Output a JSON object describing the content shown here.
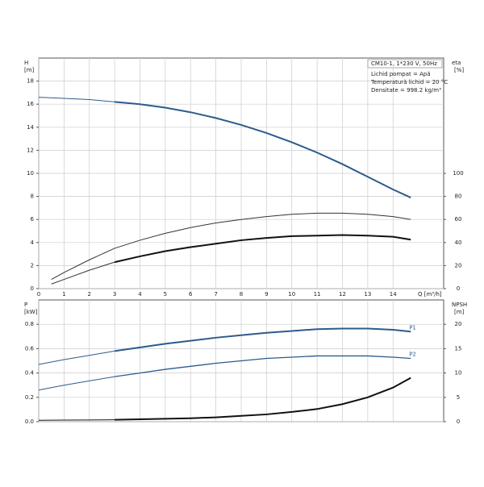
{
  "chart_data": [
    {
      "type": "line",
      "y_label": "H",
      "y_unit": "[m]",
      "y2_label": "eta",
      "y2_unit": "[%]",
      "x_label": "Q [m³/h]",
      "info": [
        "CM10-1, 1*230 V, 50Hz",
        "Lichid pompat = Apă",
        "Temperatură lichid = 20 °C",
        "Densitate = 998.2 kg/m³"
      ],
      "xlim": [
        0,
        16
      ],
      "xticks": [
        0,
        1,
        2,
        3,
        4,
        5,
        6,
        7,
        8,
        9,
        10,
        11,
        12,
        13,
        14
      ],
      "ylim": [
        0,
        20
      ],
      "yticks": [
        0,
        2,
        4,
        6,
        8,
        10,
        12,
        14,
        16,
        18
      ],
      "y2lim": [
        0,
        200
      ],
      "y2ticks": [
        0,
        20,
        40,
        60,
        80,
        100
      ],
      "grid": true,
      "series": [
        {
          "color": "#2c5b8c",
          "width": 1,
          "x": [
            0,
            1,
            2,
            3
          ],
          "values": [
            16.6,
            16.5,
            16.4,
            16.2
          ]
        },
        {
          "color": "#2c5b8c",
          "width": 2,
          "x": [
            3,
            4,
            5,
            6,
            7,
            8,
            9,
            10,
            11,
            12,
            13,
            14,
            14.7
          ],
          "values": [
            16.2,
            16.0,
            15.7,
            15.3,
            14.8,
            14.2,
            13.5,
            12.7,
            11.8,
            10.8,
            9.7,
            8.6,
            7.9
          ]
        },
        {
          "color": "#333333",
          "width": 1,
          "axis": "y2",
          "x": [
            0.5,
            1,
            2,
            3,
            4,
            5,
            6,
            7,
            8,
            9,
            10,
            11,
            12,
            13,
            14,
            14.7
          ],
          "values": [
            8,
            14,
            25,
            35,
            42,
            48,
            53,
            57,
            60,
            62.5,
            64.5,
            65.5,
            65.5,
            64.5,
            62.5,
            60
          ]
        },
        {
          "color": "#333333",
          "width": 1,
          "axis": "y2",
          "x": [
            0.5,
            1,
            2,
            3
          ],
          "values": [
            4,
            8,
            16,
            23
          ]
        },
        {
          "color": "#111111",
          "width": 2,
          "axis": "y2",
          "x": [
            3,
            4,
            5,
            6,
            7,
            8,
            9,
            10,
            11,
            12,
            13,
            14,
            14.7
          ],
          "values": [
            23,
            28,
            32.5,
            36,
            39,
            42,
            44,
            45.5,
            46,
            46.5,
            46,
            45,
            42.5
          ]
        }
      ]
    },
    {
      "type": "line",
      "y_label": "P",
      "y_unit": "[kW]",
      "y2_label": "NPSH",
      "y2_unit": "[m]",
      "xlim": [
        0,
        16
      ],
      "ylim": [
        0,
        1
      ],
      "yticks": [
        {
          "value": 0,
          "label": "0.0"
        },
        0.2,
        0.4,
        0.6,
        0.8
      ],
      "y2lim": [
        0,
        25
      ],
      "y2ticks": [
        0,
        5,
        10,
        15,
        20
      ],
      "grid": true,
      "series": [
        {
          "color": "#2c5b8c",
          "width": 1,
          "x": [
            0,
            1,
            2,
            3
          ],
          "values": [
            0.47,
            0.51,
            0.545,
            0.58
          ]
        },
        {
          "color": "#2c5b8c",
          "width": 2,
          "label": "P1",
          "x": [
            3,
            4,
            5,
            6,
            7,
            8,
            9,
            10,
            11,
            12,
            13,
            14,
            14.7
          ],
          "values": [
            0.58,
            0.61,
            0.64,
            0.665,
            0.69,
            0.71,
            0.73,
            0.745,
            0.76,
            0.765,
            0.765,
            0.755,
            0.74
          ]
        },
        {
          "color": "#2c5b8c",
          "width": 1,
          "x": [
            0,
            1,
            2,
            3
          ],
          "values": [
            0.26,
            0.3,
            0.335,
            0.37
          ]
        },
        {
          "color": "#2c5b8c",
          "width": 1.3,
          "label": "P2",
          "x": [
            3,
            4,
            5,
            6,
            7,
            8,
            9,
            10,
            11,
            12,
            13,
            14,
            14.7
          ],
          "values": [
            0.37,
            0.4,
            0.43,
            0.455,
            0.48,
            0.5,
            0.52,
            0.53,
            0.54,
            0.54,
            0.54,
            0.53,
            0.52
          ]
        },
        {
          "color": "#111111",
          "width": 1,
          "axis": "y2",
          "x": [
            0,
            1,
            2,
            3
          ],
          "values": [
            0.3,
            0.33,
            0.36,
            0.4
          ]
        },
        {
          "color": "#111111",
          "width": 2,
          "axis": "y2",
          "x": [
            3,
            4,
            5,
            6,
            7,
            8,
            9,
            10,
            11,
            12,
            13,
            14,
            14.7
          ],
          "values": [
            0.4,
            0.5,
            0.6,
            0.7,
            0.9,
            1.2,
            1.5,
            2.0,
            2.6,
            3.6,
            5.0,
            7.0,
            9.0
          ]
        }
      ]
    }
  ]
}
